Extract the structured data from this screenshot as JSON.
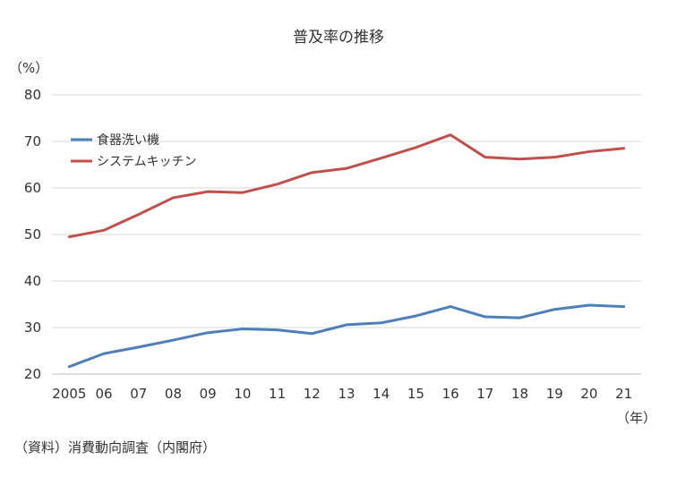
{
  "chart_data": {
    "type": "line",
    "title": "普及率の推移",
    "y_unit_label": "（%）",
    "x_unit_label": "（年）",
    "categories": [
      "2005",
      "06",
      "07",
      "08",
      "09",
      "10",
      "11",
      "12",
      "13",
      "14",
      "15",
      "16",
      "17",
      "18",
      "19",
      "20",
      "21"
    ],
    "ylim": [
      20,
      80
    ],
    "yticks": [
      20,
      30,
      40,
      50,
      60,
      70,
      80
    ],
    "grid": true,
    "legend_position": "top-left",
    "series": [
      {
        "name": "食器洗い機",
        "color": "#4f7fb8",
        "values": [
          21.6,
          24.4,
          25.8,
          27.3,
          28.9,
          29.7,
          29.5,
          28.7,
          30.6,
          31.0,
          32.5,
          34.5,
          32.3,
          32.1,
          33.9,
          34.8,
          34.5
        ]
      },
      {
        "name": "システムキッチン",
        "color": "#c0504d",
        "values": [
          49.5,
          50.9,
          54.3,
          57.9,
          59.2,
          59.0,
          60.8,
          63.3,
          64.2,
          66.4,
          68.7,
          71.4,
          66.6,
          66.2,
          66.6,
          67.8,
          68.5
        ]
      }
    ],
    "source_note": "（資料）消費動向調査（内閣府）",
    "grid_color": "#d9d9d9",
    "axis_color": "#bfbfbf"
  }
}
